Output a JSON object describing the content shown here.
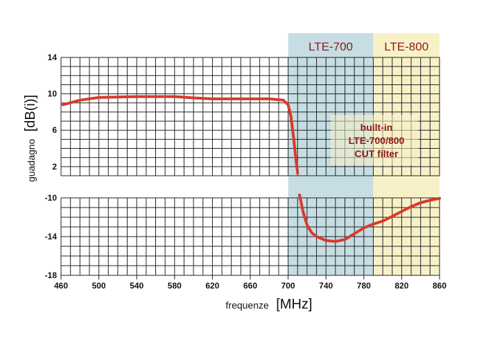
{
  "chart_data": {
    "type": "line",
    "title": "",
    "xlabel_prefix": "frequenze",
    "xlabel_unit": "[MHz]",
    "ylabel_prefix": "guadagno",
    "ylabel_unit": "[dB(i)]",
    "xlim": [
      460,
      860
    ],
    "x_ticks": [
      "460",
      "500",
      "540",
      "580",
      "620",
      "660",
      "700",
      "740",
      "780",
      "820",
      "860"
    ],
    "upper_panel": {
      "ylim": [
        1,
        14
      ],
      "y_ticks": [
        "14",
        "10",
        "6",
        "2"
      ]
    },
    "lower_panel": {
      "ylim": [
        -18,
        -10
      ],
      "y_ticks": [
        "-10",
        "-14",
        "-18"
      ]
    },
    "bands": [
      {
        "label": "LTE-700",
        "from": 700,
        "to": 790,
        "color": "#c5dde3"
      },
      {
        "label": "LTE-800",
        "from": 790,
        "to": 860,
        "color": "#f8f1c8"
      }
    ],
    "annotation": [
      "built-in",
      "LTE-700/800",
      "CUT filter"
    ],
    "grid": true,
    "series": [
      {
        "color": "#d83a2b",
        "upper": [
          [
            462,
            8.8
          ],
          [
            480,
            9.3
          ],
          [
            500,
            9.6
          ],
          [
            520,
            9.65
          ],
          [
            540,
            9.7
          ],
          [
            560,
            9.7
          ],
          [
            580,
            9.7
          ],
          [
            600,
            9.55
          ],
          [
            620,
            9.45
          ],
          [
            640,
            9.45
          ],
          [
            660,
            9.45
          ],
          [
            680,
            9.45
          ],
          [
            695,
            9.3
          ],
          [
            700,
            8.8
          ],
          [
            703,
            7.5
          ],
          [
            706,
            5.0
          ],
          [
            708,
            3.0
          ],
          [
            710,
            1.3
          ]
        ],
        "lower": [
          [
            712,
            -9.7
          ],
          [
            716,
            -11.5
          ],
          [
            720,
            -12.8
          ],
          [
            725,
            -13.6
          ],
          [
            730,
            -14.0
          ],
          [
            740,
            -14.4
          ],
          [
            750,
            -14.5
          ],
          [
            760,
            -14.3
          ],
          [
            770,
            -13.7
          ],
          [
            780,
            -13.1
          ],
          [
            790,
            -12.7
          ],
          [
            800,
            -12.4
          ],
          [
            810,
            -11.9
          ],
          [
            820,
            -11.4
          ],
          [
            830,
            -10.9
          ],
          [
            840,
            -10.5
          ],
          [
            850,
            -10.25
          ],
          [
            860,
            -10.05
          ]
        ]
      }
    ]
  }
}
